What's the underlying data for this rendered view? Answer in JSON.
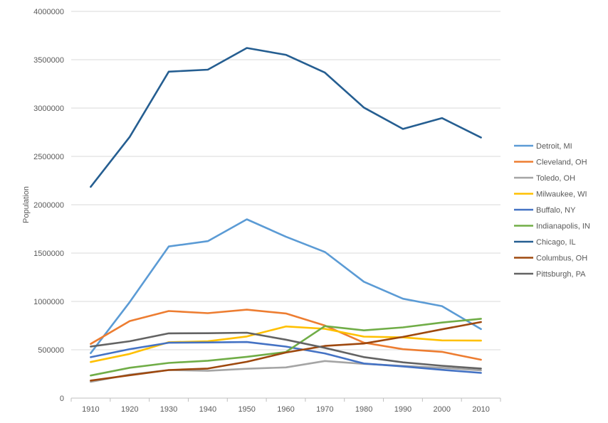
{
  "chart_data": {
    "type": "line",
    "title": "",
    "xlabel": "",
    "ylabel": "Population",
    "ylim": [
      0,
      4000000
    ],
    "yticks": [
      0,
      500000,
      1000000,
      1500000,
      2000000,
      2500000,
      3000000,
      3500000,
      4000000
    ],
    "grid": "horizontal",
    "legend_position": "right",
    "categories": [
      "1910",
      "1920",
      "1930",
      "1940",
      "1950",
      "1960",
      "1970",
      "1980",
      "1990",
      "2000",
      "2010"
    ],
    "series": [
      {
        "name": "Detroit, MI",
        "color": "#5B9BD5",
        "values": [
          465766,
          993678,
          1568662,
          1623452,
          1849568,
          1670144,
          1511482,
          1203339,
          1027974,
          951270,
          713777
        ]
      },
      {
        "name": "Cleveland, OH",
        "color": "#ED7D31",
        "values": [
          560663,
          796841,
          900429,
          878336,
          914808,
          876050,
          750903,
          573822,
          505616,
          478403,
          396815
        ]
      },
      {
        "name": "Toledo, OH",
        "color": "#A5A5A5",
        "values": [
          168497,
          243164,
          290718,
          282349,
          303616,
          318003,
          383818,
          354635,
          332943,
          313619,
          287208
        ]
      },
      {
        "name": "Milwaukee, WI",
        "color": "#FFC000",
        "values": [
          373857,
          457147,
          578249,
          587472,
          637392,
          741324,
          717099,
          636212,
          628088,
          596974,
          594833
        ]
      },
      {
        "name": "Buffalo, NY",
        "color": "#4472C4",
        "values": [
          423715,
          506775,
          573076,
          575901,
          580132,
          532759,
          462768,
          357870,
          328123,
          292648,
          261310
        ]
      },
      {
        "name": "Indianapolis, IN",
        "color": "#70AD47",
        "values": [
          233650,
          314194,
          364161,
          386972,
          427173,
          476258,
          744624,
          700807,
          731327,
          781870,
          820445
        ]
      },
      {
        "name": "Chicago, IL",
        "color": "#255E91",
        "values": [
          2185283,
          2701705,
          3376438,
          3396808,
          3620962,
          3550404,
          3366957,
          3005072,
          2783726,
          2896016,
          2695598
        ]
      },
      {
        "name": "Columbus, OH",
        "color": "#9E480E",
        "values": [
          181511,
          237031,
          290564,
          306087,
          375901,
          471316,
          539677,
          564871,
          632910,
          711470,
          787033
        ]
      },
      {
        "name": "Pittsburgh, PA",
        "color": "#636363",
        "values": [
          533905,
          588343,
          669817,
          671659,
          676806,
          604332,
          520117,
          423938,
          369879,
          334563,
          305704
        ]
      }
    ]
  }
}
